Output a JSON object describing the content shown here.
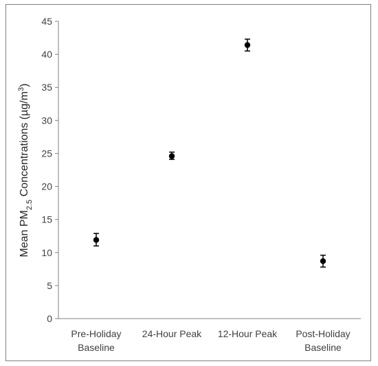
{
  "chart_data": {
    "type": "scatter",
    "title": "",
    "ylabel": {
      "prefix": "Mean PM",
      "subscript": "2.5",
      "middle": " Concentrations (µg/m",
      "superscript": "3",
      "suffix": ")"
    },
    "xlabel": "",
    "ylim": [
      0,
      45
    ],
    "ytick_step": 5,
    "y_ticks": [
      "0",
      "5",
      "10",
      "15",
      "20",
      "25",
      "30",
      "35",
      "40",
      "45"
    ],
    "grid": false,
    "categories": [
      [
        "Pre-Holiday",
        "Baseline"
      ],
      [
        "24-Hour Peak"
      ],
      [
        "12-Hour Peak"
      ],
      [
        "Post-Holiday",
        "Baseline"
      ]
    ],
    "series": [
      {
        "values": [
          11.9,
          24.6,
          41.4,
          8.7
        ],
        "error_low": [
          11.0,
          24.1,
          40.5,
          7.8
        ],
        "error_high": [
          12.9,
          25.2,
          42.3,
          9.6
        ]
      }
    ],
    "colors": {
      "marker": "#000000",
      "axis": "#7f7f7f",
      "text": "#404040"
    }
  }
}
